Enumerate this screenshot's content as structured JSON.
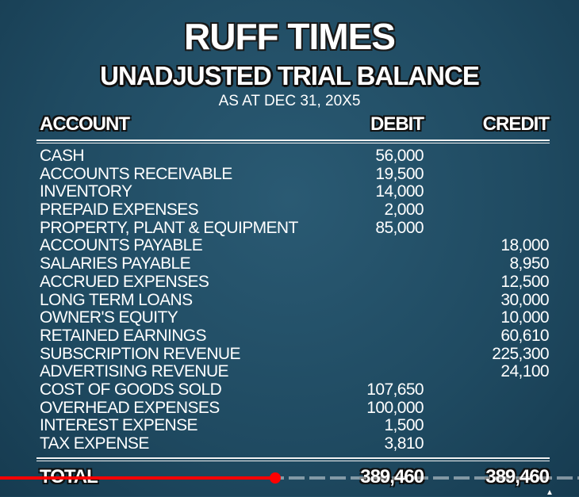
{
  "header": {
    "title": "RUFF TIMES",
    "subtitle": "UNADJUSTED TRIAL BALANCE",
    "date": "AS AT DEC 31, 20X5"
  },
  "columns": {
    "account": "ACCOUNT",
    "debit": "DEBIT",
    "credit": "CREDIT"
  },
  "rows": [
    {
      "account": "CASH",
      "debit": "56,000",
      "credit": ""
    },
    {
      "account": "ACCOUNTS RECEIVABLE",
      "debit": "19,500",
      "credit": ""
    },
    {
      "account": "INVENTORY",
      "debit": "14,000",
      "credit": ""
    },
    {
      "account": "PREPAID EXPENSES",
      "debit": "2,000",
      "credit": ""
    },
    {
      "account": "PROPERTY, PLANT & EQUIPMENT",
      "debit": "85,000",
      "credit": ""
    },
    {
      "account": "ACCOUNTS PAYABLE",
      "debit": "",
      "credit": "18,000"
    },
    {
      "account": "SALARIES PAYABLE",
      "debit": "",
      "credit": "8,950"
    },
    {
      "account": "ACCRUED EXPENSES",
      "debit": "",
      "credit": "12,500"
    },
    {
      "account": "LONG TERM LOANS",
      "debit": "",
      "credit": "30,000"
    },
    {
      "account": "OWNER'S EQUITY",
      "debit": "",
      "credit": "10,000"
    },
    {
      "account": "RETAINED EARNINGS",
      "debit": "",
      "credit": "60,610"
    },
    {
      "account": "SUBSCRIPTION REVENUE",
      "debit": "",
      "credit": "225,300"
    },
    {
      "account": "ADVERTISING REVENUE",
      "debit": "",
      "credit": "24,100"
    },
    {
      "account": "COST OF GOODS SOLD",
      "debit": "107,650",
      "credit": ""
    },
    {
      "account": "OVERHEAD EXPENSES",
      "debit": "100,000",
      "credit": ""
    },
    {
      "account": "INTEREST EXPENSE",
      "debit": "1,500",
      "credit": ""
    },
    {
      "account": "TAX EXPENSE",
      "debit": "3,810",
      "credit": ""
    }
  ],
  "total": {
    "label": "TOTAL",
    "debit": "389,460",
    "credit": "389,460"
  },
  "video_progress": 0.475,
  "colors": {
    "background": "#1f4b63",
    "text": "#ffffff",
    "progress": "#ff0000"
  }
}
